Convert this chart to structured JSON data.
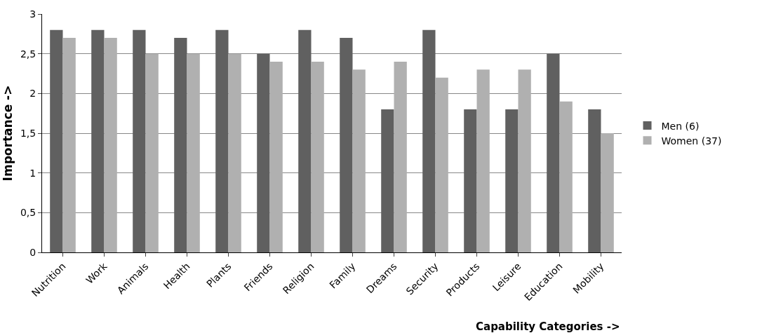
{
  "chart_data": {
    "type": "bar",
    "xlabel": "Capability Categories ->",
    "ylabel": "Importance ->",
    "categories": [
      "Nutrition",
      "Work",
      "Animals",
      "Health",
      "Plants",
      "Friends",
      "Religion",
      "Family",
      "Dreams",
      "Security",
      "Products",
      "Leisure",
      "Education",
      "Mobility"
    ],
    "series": [
      {
        "name": "Men (6)",
        "color": "#606060",
        "values": [
          2.8,
          2.8,
          2.8,
          2.7,
          2.8,
          2.5,
          2.8,
          2.7,
          1.8,
          2.8,
          1.8,
          1.8,
          2.5,
          1.8
        ]
      },
      {
        "name": "Women (37)",
        "color": "#b0b0b0",
        "values": [
          2.7,
          2.7,
          2.5,
          2.5,
          2.5,
          2.4,
          2.4,
          2.3,
          2.4,
          2.2,
          2.3,
          2.3,
          1.9,
          1.5
        ]
      }
    ],
    "ylim": [
      0,
      3
    ],
    "yticks": [
      0,
      {
        "value": 0.5,
        "label": "0,5"
      },
      1,
      {
        "value": 1.5,
        "label": "1,5"
      },
      2,
      {
        "value": 2.5,
        "label": "2,5"
      },
      3
    ],
    "grid": "y",
    "legend": "right"
  }
}
